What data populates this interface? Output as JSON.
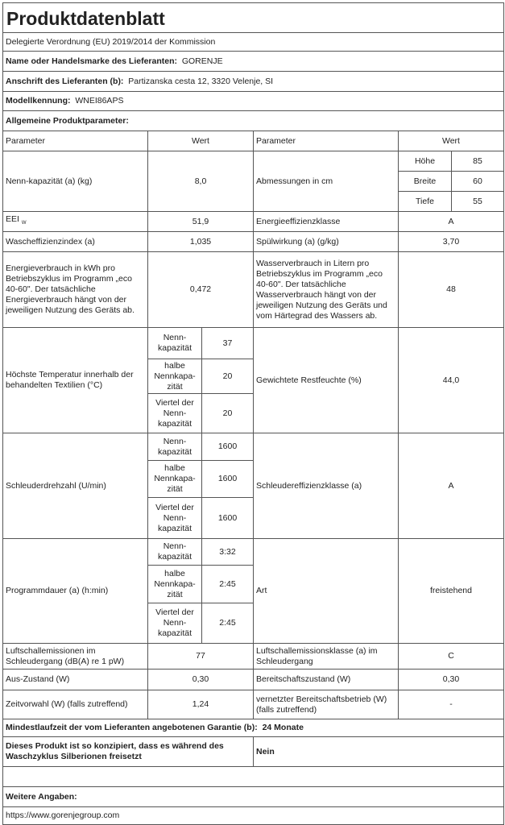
{
  "title": "Produktdatenblatt",
  "subtitle": "Delegierte Verordnung (EU) 2019/2014 der Kommission",
  "supplier": {
    "label": "Name oder Handelsmarke des Lieferanten:",
    "value": "GORENJE"
  },
  "address": {
    "label": "Anschrift des Lieferanten (b):",
    "value": "Partizanska cesta 12, 3320 Velenje, SI"
  },
  "model": {
    "label": "Modellkennung:",
    "value": "WNEI86APS"
  },
  "general_heading": "Allgemeine Produktparameter:",
  "header": {
    "param": "Parameter",
    "value": "Wert"
  },
  "rated_capacity": {
    "label": "Nenn-kapazität (a) (kg)",
    "value": "8,0"
  },
  "dimensions": {
    "label": "Abmessungen in cm",
    "height_label": "Höhe",
    "height": "85",
    "width_label": "Breite",
    "width": "60",
    "depth_label": "Tiefe",
    "depth": "55"
  },
  "eei": {
    "label": "EEI",
    "sub": "W",
    "value": "51,9"
  },
  "energy_class": {
    "label": "Energieeffizienzklasse",
    "value": "A"
  },
  "washing_index": {
    "label": "Wascheffizienzindex (a)",
    "value": "1,035"
  },
  "rinsing": {
    "label": "Spülwirkung (a) (g/kg)",
    "value": "3,70"
  },
  "energy_consumption": {
    "label": "Energieverbrauch in kWh pro Betriebszyklus im Programm „eco 40-60\". Der tatsächliche Energieverbrauch hängt von der jeweiligen Nutzung des Geräts ab.",
    "value": "0,472"
  },
  "water_consumption": {
    "label": "Wasserverbrauch in Litern pro Betriebszyklus im Programm „eco 40-60\". Der tatsächliche Wasserverbrauch hängt von der jeweiligen Nutzung des Geräts und vom Härtegrad des Wassers ab.",
    "value": "48"
  },
  "loads": {
    "full": "Nenn-kapazität",
    "half": "halbe Nennkapa-zität",
    "quarter": "Viertel der Nenn-kapazität"
  },
  "max_temp": {
    "label": "Höchste Temperatur innerhalb der behandelten Textilien (°C)",
    "full": "37",
    "half": "20",
    "quarter": "20"
  },
  "moisture": {
    "label": "Gewichtete Restfeuchte (%)",
    "value": "44,0"
  },
  "spin_speed": {
    "label": "Schleuderdrehzahl (U/min)",
    "full": "1600",
    "half": "1600",
    "quarter": "1600"
  },
  "spin_class": {
    "label": "Schleudereffizienzklasse (a)",
    "value": "A"
  },
  "duration": {
    "label": "Programmdauer (a) (h:min)",
    "full": "3:32",
    "half": "2:45",
    "quarter": "2:45"
  },
  "type": {
    "label": "Art",
    "value": "freistehend"
  },
  "noise": {
    "label": "Luftschallemissionen im Schleudergang (dB(A) re 1 pW)",
    "value": "77"
  },
  "noise_class": {
    "label": "Luftschallemissionsklasse (a) im Schleudergang",
    "value": "C"
  },
  "off_mode": {
    "label": "Aus-Zustand (W)",
    "value": "0,30"
  },
  "standby": {
    "label": "Bereitschaftszustand (W)",
    "value": "0,30"
  },
  "delay_start": {
    "label": "Zeitvorwahl (W) (falls zutreffend)",
    "value": "1,24"
  },
  "network_standby": {
    "label": "vernetzter Bereitschaftsbetrieb (W) (falls zutreffend)",
    "value": "-"
  },
  "warranty": {
    "label": "Mindestlaufzeit der vom Lieferanten angebotenen Garantie (b):",
    "value": "24 Monate"
  },
  "silver_ions": {
    "label": "Dieses Produkt ist so konzipiert, dass es während des Waschzyklus Silberionen freisetzt",
    "value": "Nein"
  },
  "further_info": "Weitere Angaben:",
  "url": "https://www.gorenjegroup.com"
}
